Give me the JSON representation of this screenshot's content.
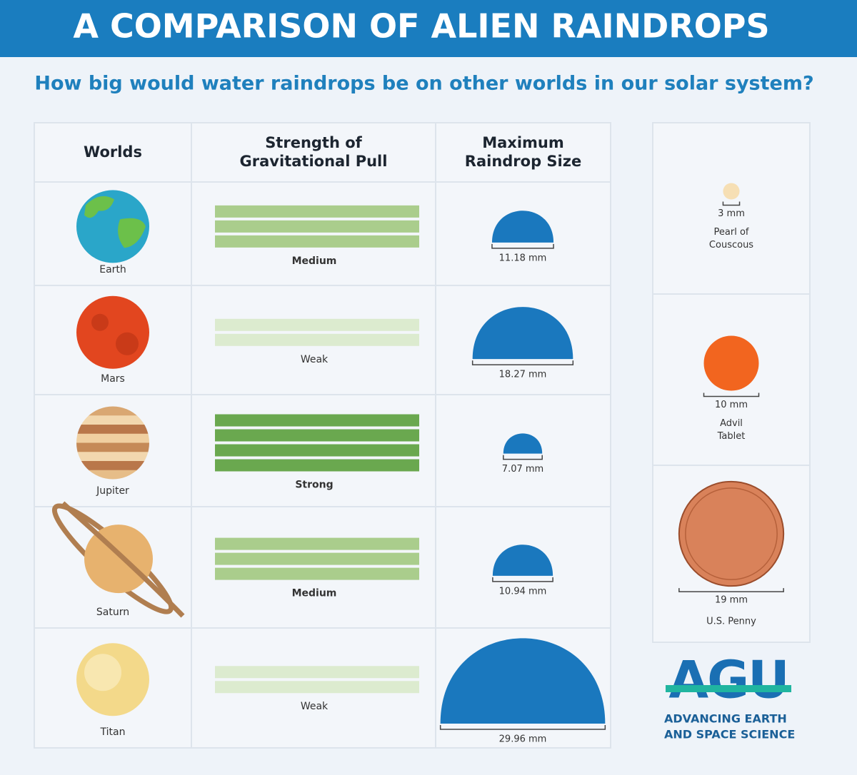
{
  "header": {
    "title": "A COMPARISON OF ALIEN RAINDROPS",
    "subtitle": "How big would water raindrops be on other worlds in our solar system?"
  },
  "table": {
    "columns": [
      [
        "Worlds"
      ],
      [
        "Strength of",
        "Gravitational Pull"
      ],
      [
        "Maximum",
        "Raindrop Size"
      ]
    ],
    "rows": [
      {
        "world": "Earth",
        "strength": "Medium",
        "strength_bars": 3,
        "bar_color": "#aacd8c",
        "drop_size": "11.18 mm"
      },
      {
        "world": "Mars",
        "strength": "Weak",
        "strength_bars": 2,
        "bar_color": "#dcebcf",
        "drop_size": "18.27 mm"
      },
      {
        "world": "Jupiter",
        "strength": "Strong",
        "strength_bars": 4,
        "bar_color": "#6aa84f",
        "drop_size": "7.07 mm"
      },
      {
        "world": "Saturn",
        "strength": "Medium",
        "strength_bars": 3,
        "bar_color": "#aacd8c",
        "drop_size": "10.94 mm"
      },
      {
        "world": "Titan",
        "strength": "Weak",
        "strength_bars": 2,
        "bar_color": "#dcebcf",
        "drop_size": "29.96 mm"
      }
    ]
  },
  "comparisons": [
    {
      "size": "3 mm",
      "label": [
        "Pearl of",
        "Couscous"
      ],
      "color": "#f6dfb4"
    },
    {
      "size": "10 mm",
      "label": [
        "Advil",
        "Tablet"
      ],
      "color": "#f2651f"
    },
    {
      "size": "19 mm",
      "label": [
        "U.S. Penny"
      ],
      "color": "#d9825a"
    }
  ],
  "logo": {
    "name": "AGU",
    "tagline": [
      "ADVANCING EARTH",
      "AND SPACE SCIENCE"
    ]
  }
}
